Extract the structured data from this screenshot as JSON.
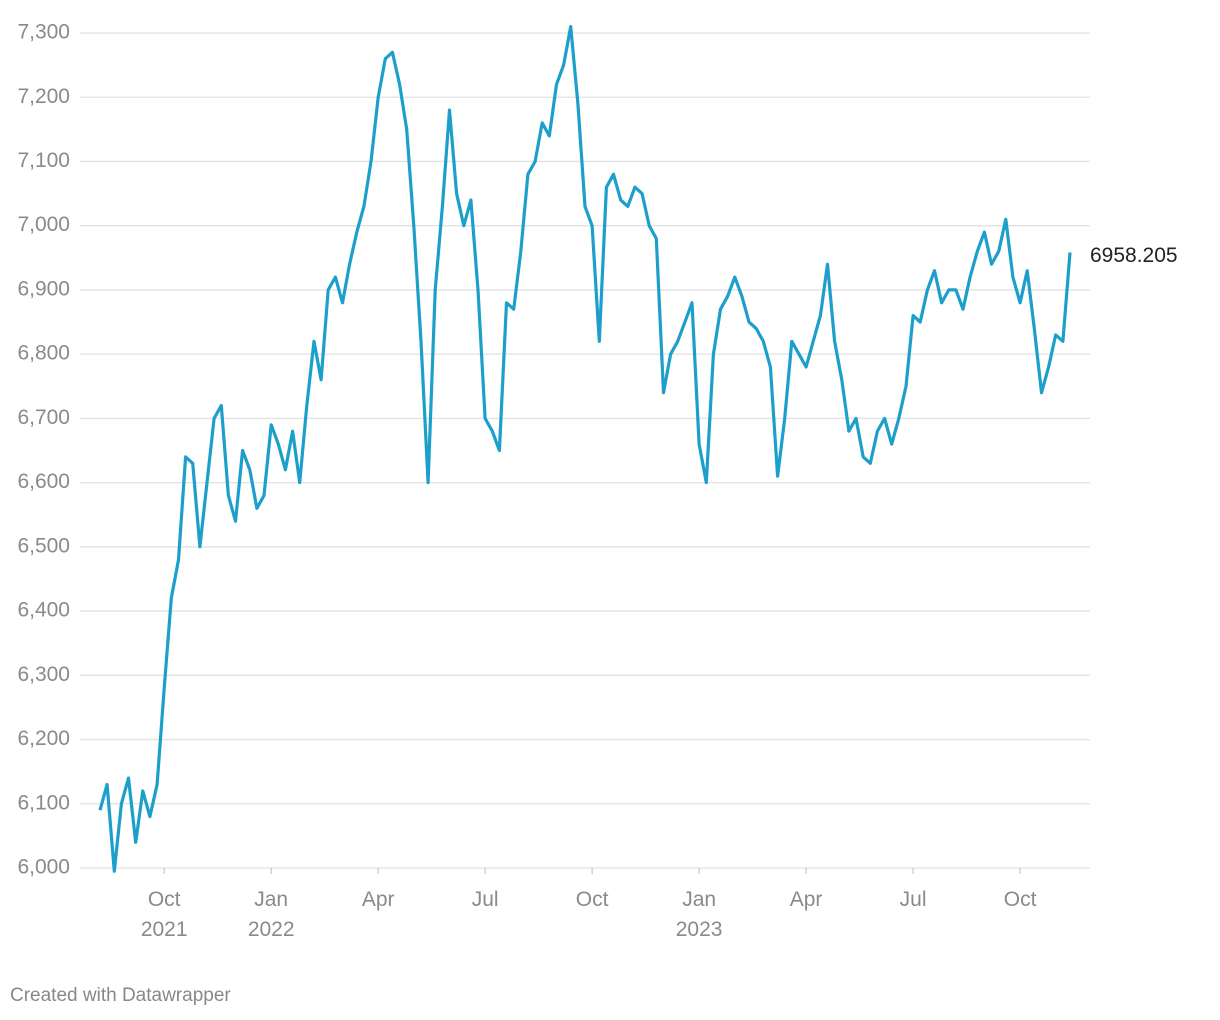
{
  "chart_data": {
    "type": "line",
    "categories": [
      null,
      null,
      null,
      null,
      null,
      null,
      null,
      null,
      null,
      "Oct 2021",
      null,
      null,
      null,
      null,
      null,
      null,
      null,
      null,
      null,
      null,
      null,
      null,
      null,
      null,
      "Jan 2022",
      null,
      null,
      null,
      null,
      null,
      null,
      null,
      null,
      null,
      null,
      null,
      null,
      null,
      null,
      "Apr",
      null,
      null,
      null,
      null,
      null,
      null,
      null,
      null,
      null,
      null,
      null,
      null,
      null,
      null,
      "Jul",
      null,
      null,
      null,
      null,
      null,
      null,
      null,
      null,
      null,
      null,
      null,
      null,
      null,
      null,
      "Oct",
      null,
      null,
      null,
      null,
      null,
      null,
      null,
      null,
      null,
      null,
      null,
      null,
      null,
      null,
      "Jan 2023",
      null,
      null,
      null,
      null,
      null,
      null,
      null,
      null,
      null,
      null,
      null,
      null,
      null,
      null,
      "Apr",
      null,
      null,
      null,
      null,
      null,
      null,
      null,
      null,
      null,
      null,
      null,
      null,
      null,
      null,
      "Jul",
      null,
      null,
      null,
      null,
      null,
      null,
      null,
      null,
      null,
      null,
      null,
      null,
      null,
      null,
      "Oct",
      null,
      null,
      null,
      null,
      null,
      null,
      null
    ],
    "series": [
      {
        "color": "#1d9fcb",
        "values": [
          6090,
          6130,
          5995,
          6100,
          6140,
          6040,
          6120,
          6080,
          6130,
          6280,
          6420,
          6480,
          6640,
          6630,
          6500,
          6600,
          6700,
          6720,
          6580,
          6540,
          6650,
          6620,
          6560,
          6580,
          6690,
          6660,
          6620,
          6680,
          6600,
          6720,
          6820,
          6760,
          6900,
          6920,
          6880,
          6940,
          6990,
          7030,
          7100,
          7200,
          7260,
          7270,
          7220,
          7150,
          7000,
          6820,
          6600,
          6900,
          7030,
          7180,
          7050,
          7000,
          7040,
          6900,
          6700,
          6680,
          6650,
          6880,
          6870,
          6960,
          7080,
          7100,
          7160,
          7140,
          7220,
          7250,
          7310,
          7190,
          7030,
          7000,
          6820,
          7060,
          7080,
          7040,
          7030,
          7060,
          7050,
          7000,
          6980,
          6740,
          6800,
          6820,
          6850,
          6880,
          6660,
          6600,
          6800,
          6870,
          6890,
          6920,
          6890,
          6850,
          6840,
          6820,
          6780,
          6610,
          6700,
          6820,
          6800,
          6780,
          6820,
          6860,
          6940,
          6820,
          6760,
          6680,
          6700,
          6640,
          6630,
          6680,
          6700,
          6660,
          6700,
          6750,
          6860,
          6850,
          6900,
          6930,
          6880,
          6900,
          6900,
          6870,
          6920,
          6960,
          6990,
          6940,
          6960,
          7010,
          6920,
          6880,
          6930,
          6840,
          6740,
          6780,
          6830,
          6820,
          6958.205
        ]
      }
    ],
    "ylim": [
      6000,
      7300
    ],
    "yticks": [
      {
        "value": 6000,
        "label": "6,000"
      },
      {
        "value": 6100,
        "label": "6,100"
      },
      {
        "value": 6200,
        "label": "6,200"
      },
      {
        "value": 6300,
        "label": "6,300"
      },
      {
        "value": 6400,
        "label": "6,400"
      },
      {
        "value": 6500,
        "label": "6,500"
      },
      {
        "value": 6600,
        "label": "6,600"
      },
      {
        "value": 6700,
        "label": "6,700"
      },
      {
        "value": 6800,
        "label": "6,800"
      },
      {
        "value": 6900,
        "label": "6,900"
      },
      {
        "value": 7000,
        "label": "7,000"
      },
      {
        "value": 7100,
        "label": "7,100"
      },
      {
        "value": 7200,
        "label": "7,200"
      },
      {
        "value": 7300,
        "label": "7,300"
      }
    ],
    "grid": true,
    "credit": "Created with Datawrapper"
  }
}
